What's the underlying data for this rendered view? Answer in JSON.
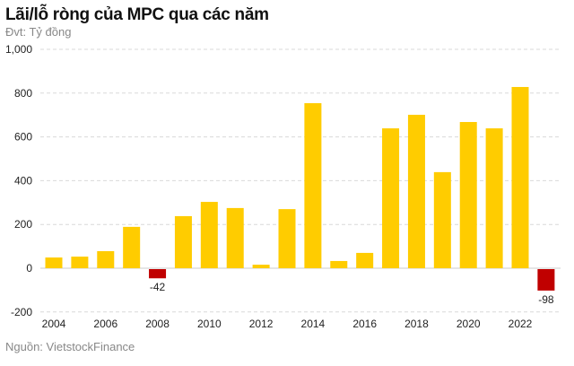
{
  "chart_data": {
    "type": "bar",
    "title": "Lãi/lỗ ròng của MPC qua các năm",
    "subtitle": "Đvt: Tỷ đồng",
    "source": "Nguồn: VietstockFinance",
    "categories": [
      "2004",
      "2005",
      "2006",
      "2007",
      "2008",
      "2009",
      "2010",
      "2011",
      "2012",
      "2013",
      "2014",
      "2015",
      "2016",
      "2017",
      "2018",
      "2019",
      "2020",
      "2021",
      "2022",
      "2023"
    ],
    "values": [
      49,
      53,
      78,
      189,
      -42,
      238,
      303,
      275,
      16,
      270,
      754,
      33,
      70,
      639,
      701,
      439,
      668,
      639,
      828,
      -98
    ],
    "data_labels": {
      "2008": "-42",
      "2023": "-98"
    },
    "x_tick_labels": [
      "2004",
      "2006",
      "2008",
      "2010",
      "2012",
      "2014",
      "2016",
      "2018",
      "2020",
      "2022"
    ],
    "y_tick_labels": [
      "-200",
      "0",
      "200",
      "400",
      "600",
      "800",
      "1,000"
    ],
    "ylim": [
      -200,
      1000
    ],
    "grid": true,
    "colors": {
      "positive": "#FFCC00",
      "negative": "#C00000"
    }
  }
}
